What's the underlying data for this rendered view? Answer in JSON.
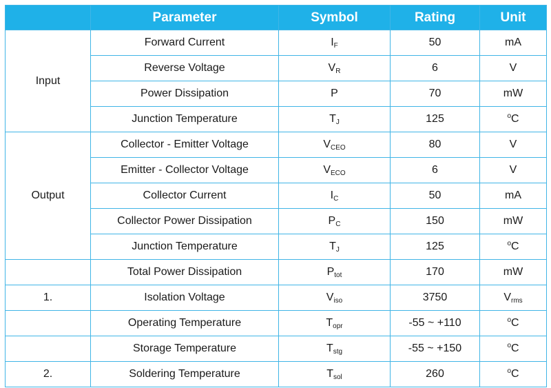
{
  "headers": {
    "group": "",
    "parameter": "Parameter",
    "symbol": "Symbol",
    "rating": "Rating",
    "unit": "Unit"
  },
  "groups": {
    "input": "Input",
    "output": "Output",
    "note1": "1.",
    "note2": "2."
  },
  "rows": [
    {
      "parameter": "Forward Current",
      "sym": "I",
      "sub": "F",
      "rating": "50",
      "unit": "mA",
      "unit_sup": "",
      "unit_sub": ""
    },
    {
      "parameter": "Reverse Voltage",
      "sym": "V",
      "sub": "R",
      "rating": "6",
      "unit": "V",
      "unit_sup": "",
      "unit_sub": ""
    },
    {
      "parameter": "Power Dissipation",
      "sym": "P",
      "sub": "",
      "rating": "70",
      "unit": "mW",
      "unit_sup": "",
      "unit_sub": ""
    },
    {
      "parameter": "Junction Temperature",
      "sym": "T",
      "sub": "J",
      "rating": "125",
      "unit": "C",
      "unit_sup": "o",
      "unit_sub": ""
    },
    {
      "parameter": "Collector - Emitter Voltage",
      "sym": "V",
      "sub": "CEO",
      "rating": "80",
      "unit": "V",
      "unit_sup": "",
      "unit_sub": ""
    },
    {
      "parameter": "Emitter - Collector Voltage",
      "sym": "V",
      "sub": "ECO",
      "rating": "6",
      "unit": "V",
      "unit_sup": "",
      "unit_sub": ""
    },
    {
      "parameter": "Collector Current",
      "sym": "I",
      "sub": "C",
      "rating": "50",
      "unit": "mA",
      "unit_sup": "",
      "unit_sub": ""
    },
    {
      "parameter": "Collector Power Dissipation",
      "sym": "P",
      "sub": "C",
      "rating": "150",
      "unit": "mW",
      "unit_sup": "",
      "unit_sub": ""
    },
    {
      "parameter": "Junction Temperature",
      "sym": "T",
      "sub": "J",
      "rating": "125",
      "unit": "C",
      "unit_sup": "o",
      "unit_sub": ""
    },
    {
      "parameter": "Total Power Dissipation",
      "sym": "P",
      "sub": "tot",
      "rating": "170",
      "unit": "mW",
      "unit_sup": "",
      "unit_sub": ""
    },
    {
      "parameter": "Isolation Voltage",
      "sym": "V",
      "sub": "iso",
      "rating": "3750",
      "unit": "V",
      "unit_sup": "",
      "unit_sub": "rms"
    },
    {
      "parameter": "Operating Temperature",
      "sym": "T",
      "sub": "opr",
      "rating": "-55 ~ +110",
      "unit": "C",
      "unit_sup": "o",
      "unit_sub": ""
    },
    {
      "parameter": "Storage Temperature",
      "sym": "T",
      "sub": "stg",
      "rating": "-55 ~ +150",
      "unit": "C",
      "unit_sup": "o",
      "unit_sub": ""
    },
    {
      "parameter": "Soldering Temperature",
      "sym": "T",
      "sub": "sol",
      "rating": "260",
      "unit": "C",
      "unit_sup": "o",
      "unit_sub": ""
    }
  ],
  "colors": {
    "header_bg": "#1fb1e8",
    "header_text": "#ffffff",
    "border": "#3fb5e6"
  }
}
